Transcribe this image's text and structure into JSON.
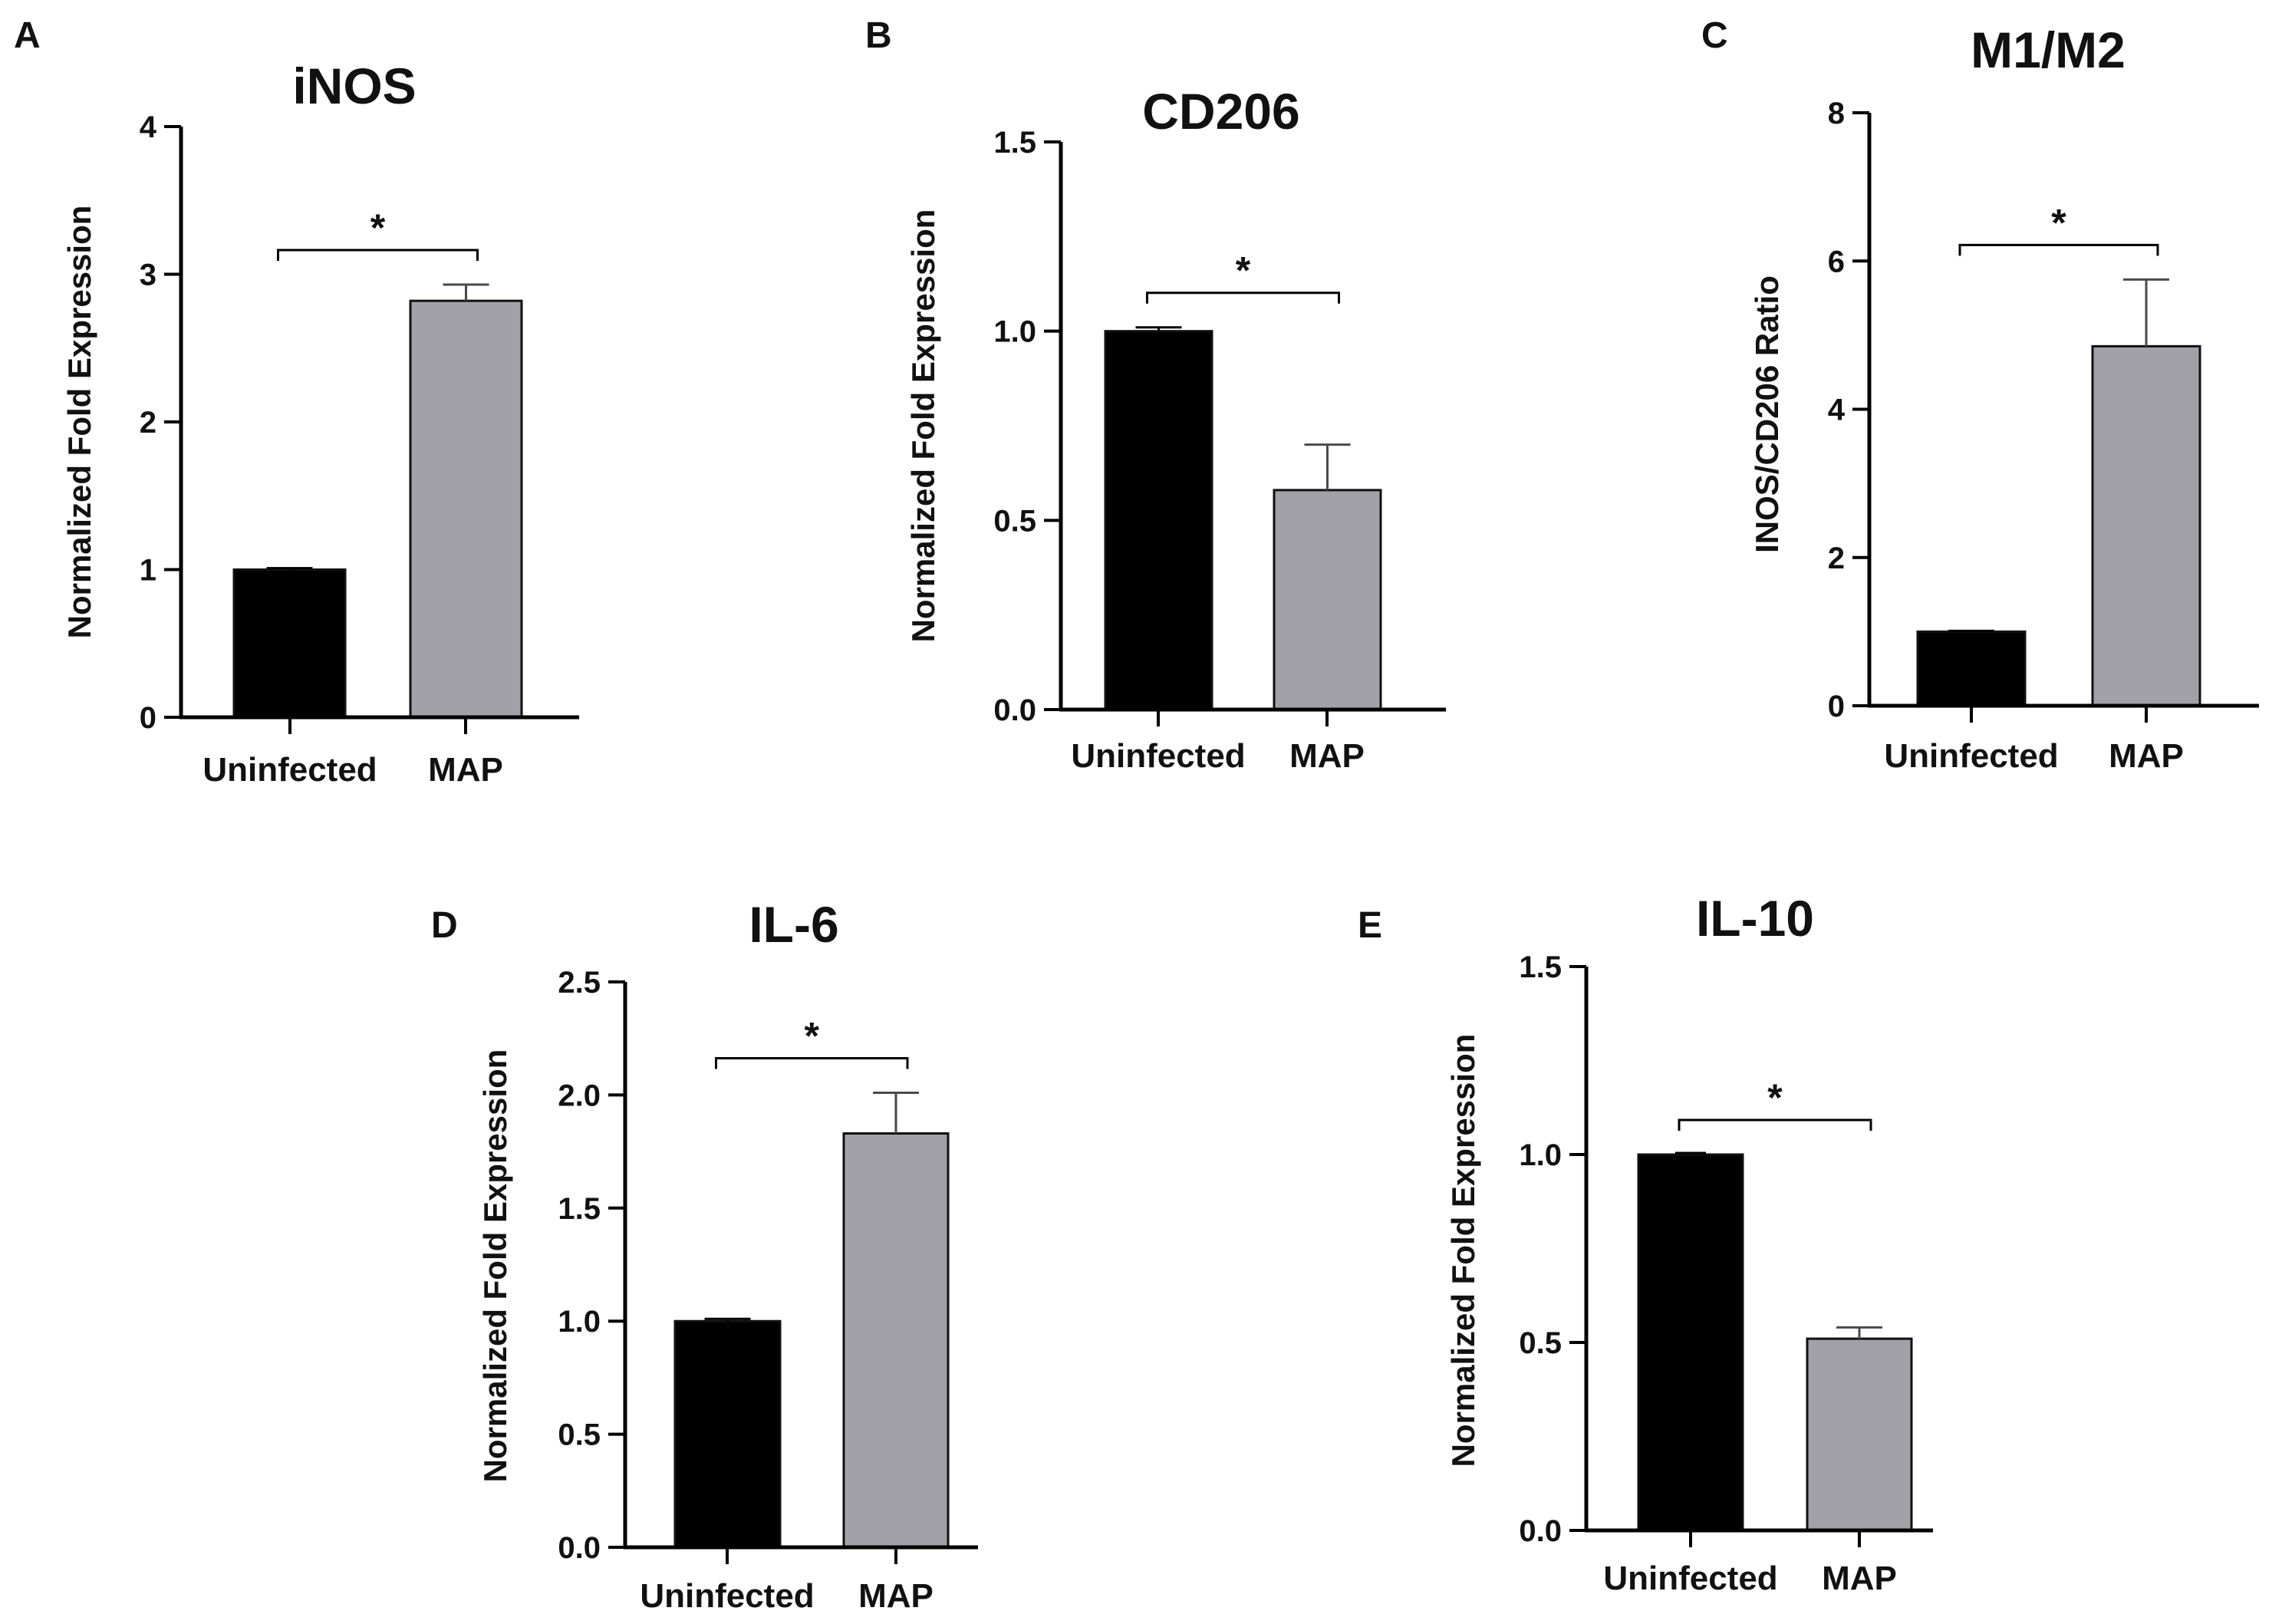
{
  "chart_data": [
    {
      "panel": "A",
      "type": "bar",
      "title": "iNOS",
      "ylabel": "Normalized Fold Expression",
      "xlabel": "",
      "categories": [
        "Uninfected",
        "MAP"
      ],
      "values": [
        1.0,
        2.82
      ],
      "errors": [
        0.01,
        0.11
      ],
      "colors": [
        "#000000",
        "#a2a1a7"
      ],
      "ylim": [
        0,
        4
      ],
      "yticks": [
        0,
        1,
        2,
        3,
        4
      ],
      "ytick_labels": [
        "0",
        "1",
        "2",
        "3",
        "4"
      ],
      "significance": "*"
    },
    {
      "panel": "B",
      "type": "bar",
      "title": "CD206",
      "ylabel": "Normalized Fold Expression",
      "xlabel": "",
      "categories": [
        "Uninfected",
        "MAP"
      ],
      "values": [
        1.0,
        0.58
      ],
      "errors": [
        0.01,
        0.12
      ],
      "colors": [
        "#000000",
        "#a2a1a7"
      ],
      "ylim": [
        0,
        1.5
      ],
      "yticks": [
        0,
        0.5,
        1.0,
        1.5
      ],
      "ytick_labels": [
        "0.0",
        "0.5",
        "1.0",
        "1.5"
      ],
      "significance": "*"
    },
    {
      "panel": "C",
      "type": "bar",
      "title": "M1/M2",
      "ylabel": "INOS/CD206 Ratio",
      "xlabel": "",
      "categories": [
        "Uninfected",
        "MAP"
      ],
      "values": [
        1.0,
        4.85
      ],
      "errors": [
        0.01,
        0.9
      ],
      "colors": [
        "#000000",
        "#a2a1a7"
      ],
      "ylim": [
        0,
        8
      ],
      "yticks": [
        0,
        2,
        4,
        6,
        8
      ],
      "ytick_labels": [
        "0",
        "2",
        "4",
        "6",
        "8"
      ],
      "significance": "*"
    },
    {
      "panel": "D",
      "type": "bar",
      "title": "IL-6",
      "ylabel": "Normalized Fold Expression",
      "xlabel": "",
      "categories": [
        "Uninfected",
        "MAP"
      ],
      "values": [
        1.0,
        1.83
      ],
      "errors": [
        0.01,
        0.18
      ],
      "colors": [
        "#000000",
        "#a2a1a7"
      ],
      "ylim": [
        0,
        2.5
      ],
      "yticks": [
        0,
        0.5,
        1.0,
        1.5,
        2.0,
        2.5
      ],
      "ytick_labels": [
        "0.0",
        "0.5",
        "1.0",
        "1.5",
        "2.0",
        "2.5"
      ],
      "significance": "*"
    },
    {
      "panel": "E",
      "type": "bar",
      "title": "IL-10",
      "ylabel": "Normalized Fold Expression",
      "xlabel": "",
      "categories": [
        "Uninfected",
        "MAP"
      ],
      "values": [
        1.0,
        0.51
      ],
      "errors": [
        0.0,
        0.03
      ],
      "colors": [
        "#000000",
        "#a2a1a7"
      ],
      "ylim": [
        0,
        1.5
      ],
      "yticks": [
        0,
        0.5,
        1.0,
        1.5
      ],
      "ytick_labels": [
        "0.0",
        "0.5",
        "1.0",
        "1.5"
      ],
      "significance": "*"
    }
  ]
}
